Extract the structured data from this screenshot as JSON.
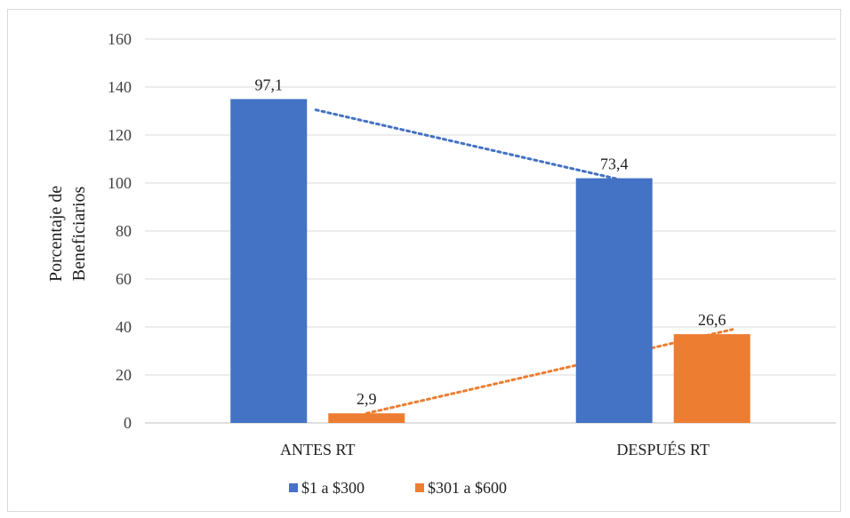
{
  "chart_data": {
    "type": "bar",
    "title": "",
    "xlabel": "",
    "ylabel_lines": [
      "Porcentaje de",
      "Beneficiarios"
    ],
    "ylim": [
      0,
      160
    ],
    "yticks": [
      0,
      20,
      40,
      60,
      80,
      100,
      120,
      140,
      160
    ],
    "categories": [
      "ANTES RT",
      "DESPUÉS RT"
    ],
    "series": [
      {
        "name": "$1 a $300",
        "color": "#4472c4",
        "values": [
          135,
          102
        ],
        "labels": [
          "97,1",
          "73,4"
        ]
      },
      {
        "name": "$301 a $600",
        "color": "#ed7d31",
        "values": [
          4,
          37
        ],
        "labels": [
          "2,9",
          "26,6"
        ]
      }
    ],
    "trendlines": true,
    "grid": true,
    "legend_position": "bottom"
  }
}
